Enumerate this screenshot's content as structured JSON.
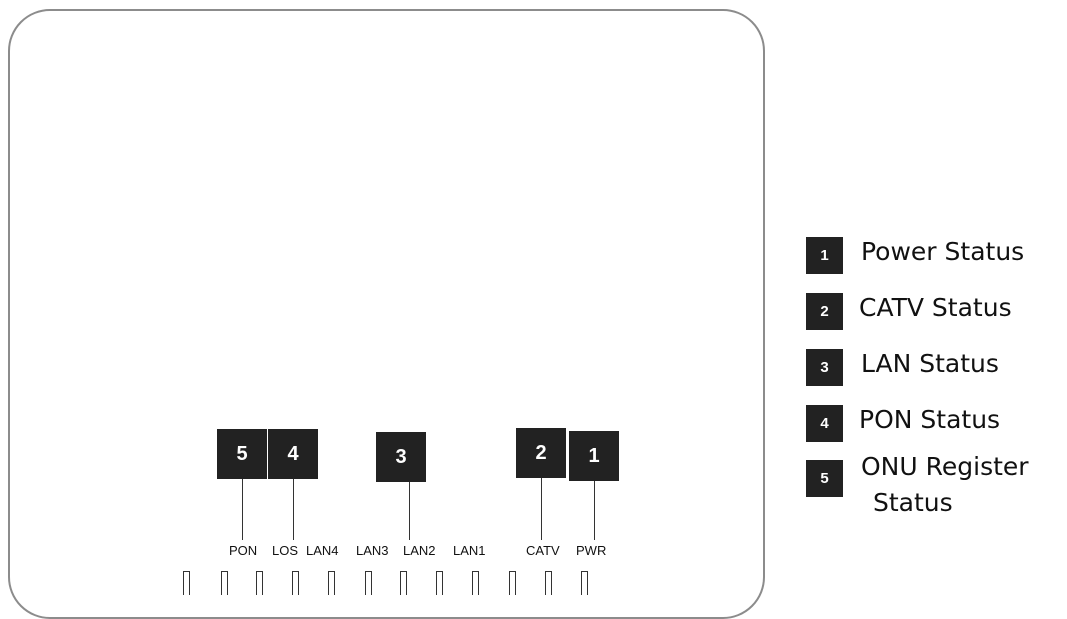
{
  "callouts": [
    "5",
    "4",
    "3",
    "2",
    "1"
  ],
  "ports": [
    "PON",
    "LOS",
    "LAN4",
    "LAN3",
    "LAN2",
    "LAN1",
    "CATV",
    "PWR"
  ],
  "legend": [
    {
      "num": "1",
      "text": "Power Status"
    },
    {
      "num": "2",
      "text": "CATV Status"
    },
    {
      "num": "3",
      "text": "LAN Status"
    },
    {
      "num": "4",
      "text": "PON Status"
    },
    {
      "num": "5",
      "text": "ONU Register",
      "text2": "Status"
    }
  ]
}
